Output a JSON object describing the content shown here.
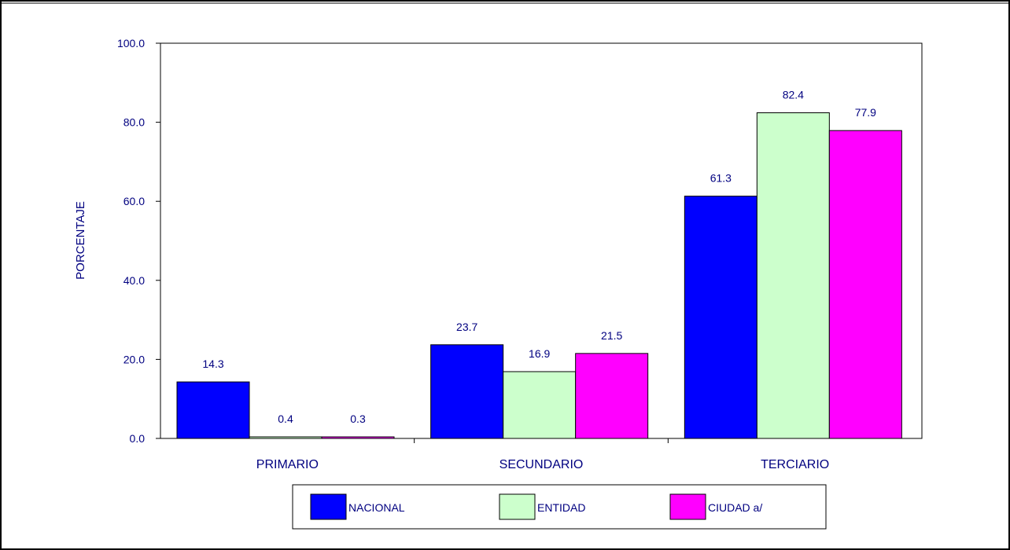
{
  "chart_data": {
    "type": "bar",
    "categories": [
      "PRIMARIO",
      "SECUNDARIO",
      "TERCIARIO"
    ],
    "series": [
      {
        "name": "NACIONAL",
        "values": [
          14.3,
          23.7,
          61.3
        ],
        "color": "#0000FF"
      },
      {
        "name": "ENTIDAD",
        "values": [
          0.4,
          16.9,
          82.4
        ],
        "color": "#CCFFCC"
      },
      {
        "name": "CIUDAD a/",
        "values": [
          0.3,
          21.5,
          77.9
        ],
        "color": "#FF00FF"
      }
    ],
    "value_labels": [
      [
        "14.3",
        "23.7",
        "61.3"
      ],
      [
        "0.4",
        "16.9",
        "82.4"
      ],
      [
        "0.3",
        "21.5",
        "77.9"
      ]
    ],
    "ylabel": "PORCENTAJE",
    "ylim": [
      0,
      100
    ],
    "yticks": [
      "0.0",
      "20.0",
      "40.0",
      "60.0",
      "80.0",
      "100.0"
    ],
    "grid": false,
    "legend_position": "bottom",
    "label_color": "#000080"
  }
}
